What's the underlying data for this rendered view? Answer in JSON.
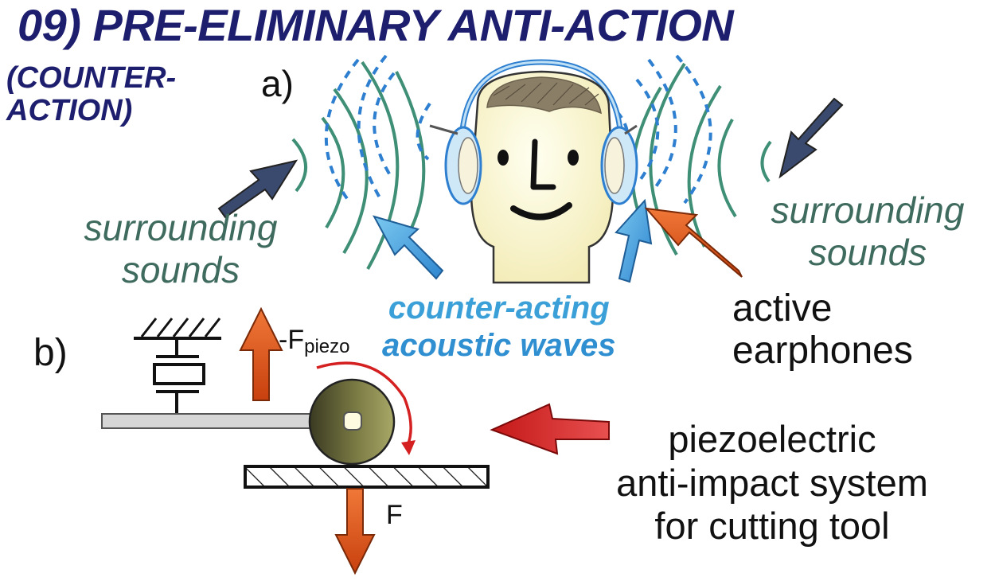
{
  "title": "09) PRE-ELIMINARY ANTI-ACTION",
  "subtitle": {
    "line1": "(COUNTER-",
    "line2": "ACTION)"
  },
  "panel_a_label": "a)",
  "panel_b_label": "b)",
  "surrounding_left": {
    "line1": "surrounding",
    "line2": "sounds"
  },
  "surrounding_right": {
    "line1": "surrounding",
    "line2": "sounds"
  },
  "counter_acting": {
    "line1": "counter-acting",
    "line2": "acoustic waves"
  },
  "active_earphones": {
    "line1": "active",
    "line2": "earphones"
  },
  "piezo_system": {
    "line1": "piezoelectric",
    "line2": "anti-impact system",
    "line3": "for cutting tool"
  },
  "force_piezo": {
    "main": "-F",
    "sub": "piezo"
  },
  "force": "F",
  "colors": {
    "title": "#1e1e6e",
    "sound_wave": "#3f8f76",
    "counter_wave": "#2e7fd0",
    "dark_arrow": "#3a4a6e",
    "blue_arrow": "#3a9ee0",
    "orange_arrow": "#e0521e",
    "red_arrow": "#d42020",
    "rotation": "#d42020",
    "tool": "#6e6e3a"
  }
}
